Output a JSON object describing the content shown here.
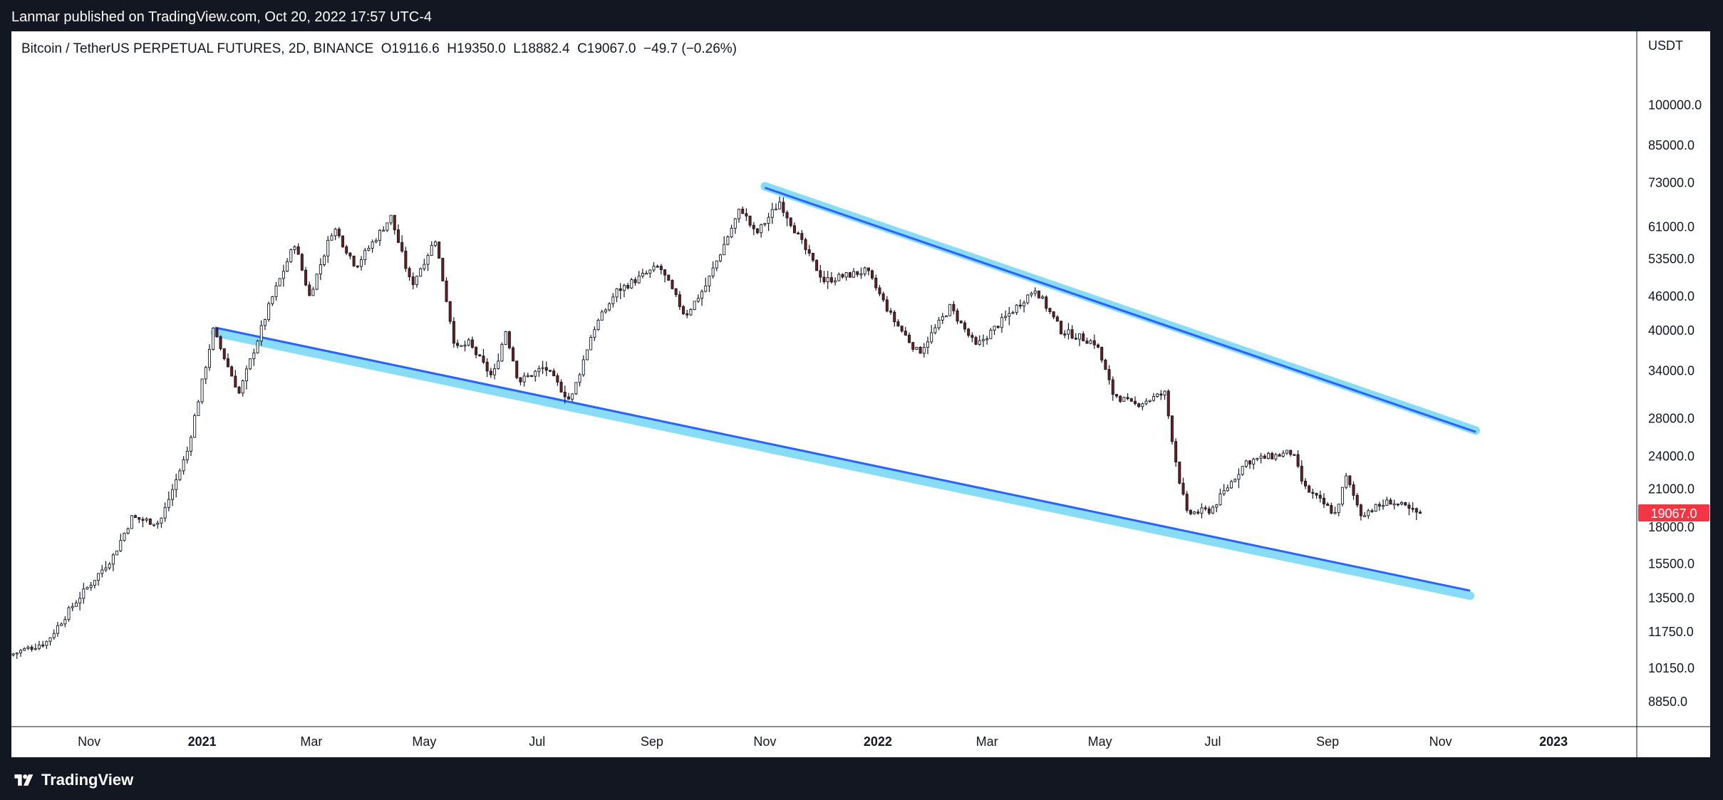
{
  "header": {
    "published": "Lanmar published on TradingView.com, Oct 20, 2022 17:57 UTC-4"
  },
  "legend": {
    "text": "Bitcoin / TetherUS PERPETUAL FUTURES, 2D, BINANCE  O19116.6  H19350.0  L18882.4  C19067.0  −49.7 (−0.26%)"
  },
  "footer": {
    "brand": "TradingView",
    "icon": "tradingview-logo-icon"
  },
  "colors": {
    "up": "#ffffff",
    "down": "#6f1e1e",
    "wick": "#131722",
    "line": "#2962ff",
    "channel": "#89dcf5",
    "last_price_bg": "#f23645"
  },
  "chart_data": {
    "type": "candlestick",
    "interval": "2D",
    "y_scale": "log",
    "y_unit": "USDT",
    "ylim": [
      8000,
      135000
    ],
    "x_range": [
      "2020-09-20",
      "2023-02-15"
    ],
    "y_ticks": [
      "100000.0",
      "85000.0",
      "73000.0",
      "61000.0",
      "53500.0",
      "46000.0",
      "40000.0",
      "34000.0",
      "28000.0",
      "24000.0",
      "21000.0",
      "18000.0",
      "15500.0",
      "13500.0",
      "11750.0",
      "10150.0",
      "8850.0"
    ],
    "x_ticks": [
      {
        "date": "2020-11-01",
        "label": "Nov"
      },
      {
        "date": "2021-01-01",
        "label": "2021"
      },
      {
        "date": "2021-03-01",
        "label": "Mar"
      },
      {
        "date": "2021-05-01",
        "label": "May"
      },
      {
        "date": "2021-07-01",
        "label": "Jul"
      },
      {
        "date": "2021-09-01",
        "label": "Sep"
      },
      {
        "date": "2021-11-01",
        "label": "Nov"
      },
      {
        "date": "2022-01-01",
        "label": "2022"
      },
      {
        "date": "2022-03-01",
        "label": "Mar"
      },
      {
        "date": "2022-05-01",
        "label": "May"
      },
      {
        "date": "2022-07-01",
        "label": "Jul"
      },
      {
        "date": "2022-09-01",
        "label": "Sep"
      },
      {
        "date": "2022-11-01",
        "label": "Nov"
      },
      {
        "date": "2023-01-01",
        "label": "2023"
      }
    ],
    "last_price": "19067.0",
    "ohlc_last": {
      "open": 19116.6,
      "high": 19350.0,
      "low": 18882.4,
      "close": 19067.0,
      "change": -49.7,
      "change_pct": -0.26
    },
    "price_path": [
      [
        "2020-09-20",
        10700
      ],
      [
        "2020-10-10",
        11300
      ],
      [
        "2020-10-25",
        13200
      ],
      [
        "2020-11-15",
        16000
      ],
      [
        "2020-11-25",
        18700
      ],
      [
        "2020-12-10",
        18300
      ],
      [
        "2020-12-25",
        24500
      ],
      [
        "2021-01-08",
        40000
      ],
      [
        "2021-01-22",
        31000
      ],
      [
        "2021-02-08",
        45000
      ],
      [
        "2021-02-21",
        57000
      ],
      [
        "2021-03-01",
        46000
      ],
      [
        "2021-03-14",
        61000
      ],
      [
        "2021-03-26",
        52000
      ],
      [
        "2021-04-14",
        63500
      ],
      [
        "2021-04-25",
        48000
      ],
      [
        "2021-05-08",
        58000
      ],
      [
        "2021-05-19",
        37000
      ],
      [
        "2021-05-26",
        38000
      ],
      [
        "2021-06-08",
        33000
      ],
      [
        "2021-06-15",
        40000
      ],
      [
        "2021-06-22",
        32500
      ],
      [
        "2021-07-06",
        34500
      ],
      [
        "2021-07-20",
        30000
      ],
      [
        "2021-08-01",
        40000
      ],
      [
        "2021-08-14",
        47000
      ],
      [
        "2021-09-06",
        52000
      ],
      [
        "2021-09-20",
        42500
      ],
      [
        "2021-10-01",
        48000
      ],
      [
        "2021-10-20",
        66000
      ],
      [
        "2021-10-28",
        59000
      ],
      [
        "2021-11-10",
        67500
      ],
      [
        "2021-11-26",
        54000
      ],
      [
        "2021-12-04",
        49000
      ],
      [
        "2021-12-27",
        51000
      ],
      [
        "2022-01-10",
        42000
      ],
      [
        "2022-01-24",
        36500
      ],
      [
        "2022-02-10",
        44000
      ],
      [
        "2022-02-24",
        37500
      ],
      [
        "2022-03-28",
        47500
      ],
      [
        "2022-04-11",
        40000
      ],
      [
        "2022-04-30",
        38000
      ],
      [
        "2022-05-09",
        31000
      ],
      [
        "2022-05-20",
        29500
      ],
      [
        "2022-06-06",
        31000
      ],
      [
        "2022-06-13",
        22500
      ],
      [
        "2022-06-18",
        19000
      ],
      [
        "2022-07-01",
        19300
      ],
      [
        "2022-07-20",
        23500
      ],
      [
        "2022-08-14",
        24400
      ],
      [
        "2022-08-20",
        21200
      ],
      [
        "2022-09-06",
        19000
      ],
      [
        "2022-09-12",
        22000
      ],
      [
        "2022-09-20",
        19000
      ],
      [
        "2022-10-06",
        20000
      ],
      [
        "2022-10-20",
        19067
      ]
    ],
    "trendlines": [
      {
        "name": "upper",
        "from": [
          "2021-11-01",
          71500
        ],
        "to": [
          "2022-11-20",
          26500
        ]
      },
      {
        "name": "lower",
        "from": [
          "2021-01-08",
          40500
        ],
        "to": [
          "2022-11-17",
          13900
        ]
      }
    ]
  }
}
